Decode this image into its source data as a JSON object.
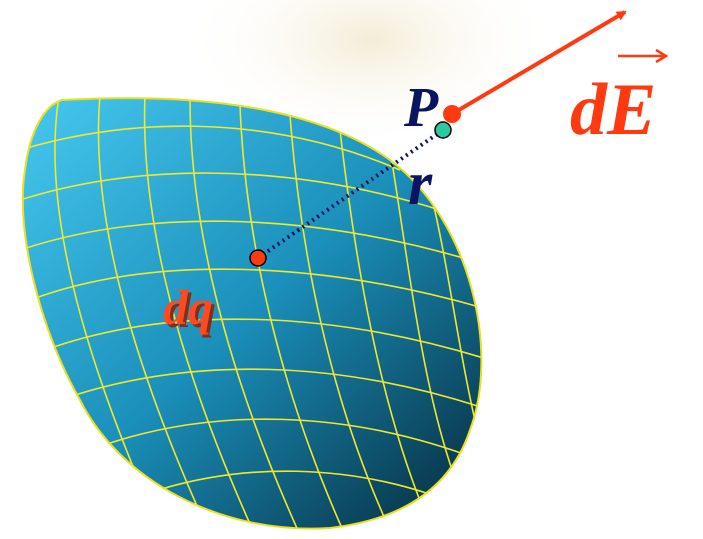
{
  "labels": {
    "point": "P",
    "distance": "r",
    "charge": "dq",
    "field": "dE"
  }
}
